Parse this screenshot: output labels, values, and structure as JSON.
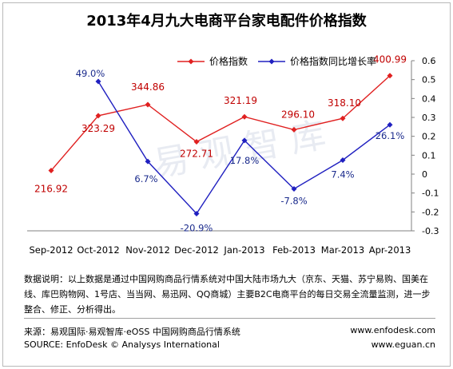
{
  "chart_data": {
    "type": "line",
    "title": "2013年4月九大电商平台家电配件价格指数",
    "categories": [
      "Sep-2012",
      "Oct-2012",
      "Nov-2012",
      "Dec-2012",
      "Jan-2013",
      "Feb-2013",
      "Mar-2013",
      "Apr-2013"
    ],
    "series": [
      {
        "name": "价格指数",
        "axis": "left",
        "color": "#e02020",
        "values": [
          216.92,
          323.29,
          344.86,
          272.71,
          321.19,
          296.1,
          318.1,
          400.99
        ],
        "labels": [
          "216.92",
          "323.29",
          "344.86",
          "272.71",
          "321.19",
          "296.10",
          "318.10",
          "400.99"
        ]
      },
      {
        "name": "价格指数同比增长率",
        "axis": "right",
        "color": "#2020c0",
        "values": [
          null,
          0.49,
          0.067,
          -0.209,
          0.178,
          -0.078,
          0.074,
          0.261
        ],
        "labels": [
          "",
          "49.0%",
          "6.7%",
          "-20.9%",
          "17.8%",
          "-7.8%",
          "7.4%",
          "26.1%"
        ]
      }
    ],
    "y2lim": [
      -0.3,
      0.6
    ],
    "y2ticks": [
      "0.6",
      "0.5",
      "0.4",
      "0.3",
      "0.2",
      "0.1",
      "0",
      "-0.1",
      "-0.2",
      "-0.3"
    ],
    "legend_position": "top"
  },
  "watermark": "易观智库",
  "note": "数据说明：以上数据是通过中国网购商品行情系统对中国大陆市场九大（京东、天猫、苏宁易购、国美在线、库巴购物网、1号店、当当网、易迅网、QQ商城）主要B2C电商平台的每日交易全流量监测，进一步整合、修正、分析得出。",
  "source_cn": "来源：易观国际·易观智库·eOSS 中国网购商品行情系统",
  "source_en": "SOURCE: EnfoDesk © Analysys International",
  "url1": "www.enfodesk.com",
  "url2": "www.eguan.cn"
}
